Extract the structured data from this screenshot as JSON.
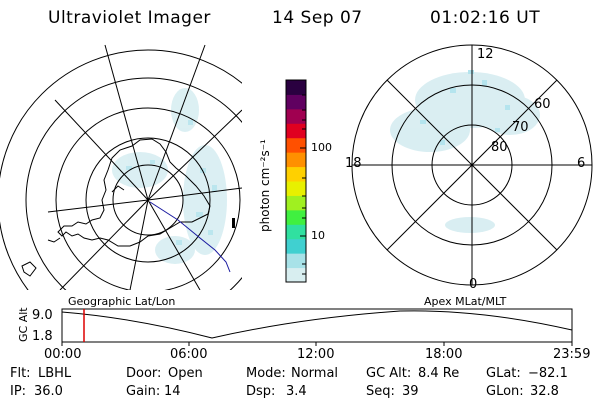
{
  "header": {
    "title": "Ultraviolet Imager",
    "date": "14 Sep 07",
    "time": "01:02:16 UT"
  },
  "left_panel": {
    "caption": "Geographic Lat/Lon"
  },
  "right_panel": {
    "caption": "Apex MLat/MLT",
    "mlt_labels": {
      "top": "12",
      "left": "18",
      "right": "6",
      "bottom": "0"
    },
    "lat_labels": [
      "60",
      "70",
      "80"
    ]
  },
  "colorbar": {
    "unit_label": "photon cm⁻²s⁻¹",
    "ticks": [
      "100",
      "10"
    ],
    "colors": [
      "#d8eef0",
      "#a8e2e8",
      "#40d0d0",
      "#30e0a0",
      "#40f040",
      "#a0f020",
      "#e8f000",
      "#ffd000",
      "#ff9000",
      "#ff5000",
      "#e00020",
      "#a00050",
      "#600060",
      "#2a0040"
    ]
  },
  "timeline": {
    "ylabel": "GC Alt",
    "y_ticks": [
      "9.0",
      "1.8"
    ],
    "x_ticks": [
      "00:00",
      "06:00",
      "12:00",
      "18:00",
      "23:59"
    ],
    "marker_time": "01:02",
    "marker_color": "#dd0000"
  },
  "status": {
    "flt_label": "Flt:",
    "flt_value": "LBHL",
    "door_label": "Door:",
    "door_value": "Open",
    "mode_label": "Mode:",
    "mode_value": "Normal",
    "gcalt_label": "GC Alt:",
    "gcalt_value": "8.4 Re",
    "glat_label": "GLat:",
    "glat_value": "−82.1",
    "ip_label": "IP:",
    "ip_value": "36.0",
    "gain_label": "Gain:",
    "gain_value": "14",
    "dsp_label": "Dsp:",
    "dsp_value": "3.4",
    "seq_label": "Seq:",
    "seq_value": "39",
    "glon_label": "GLon:",
    "glon_value": "32.8"
  }
}
